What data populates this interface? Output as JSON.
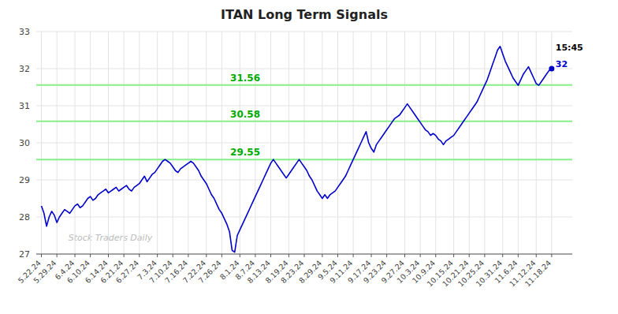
{
  "chart_data": {
    "type": "line",
    "title": "ITAN Long Term Signals",
    "color": "#0000cc",
    "grid": true,
    "marker": "endpoint",
    "ylim": [
      27,
      33
    ],
    "yticks": [
      27,
      28,
      29,
      30,
      31,
      32,
      33
    ],
    "categories": [
      "5.22.24",
      null,
      null,
      null,
      null,
      null,
      "5.29.24",
      null,
      null,
      null,
      null,
      null,
      null,
      "6.4.24",
      null,
      null,
      null,
      null,
      null,
      "6.10.24",
      null,
      null,
      null,
      null,
      null,
      null,
      "6.14.24",
      null,
      null,
      null,
      null,
      null,
      "6.21.24",
      null,
      null,
      null,
      null,
      null,
      "6.27.24",
      null,
      null,
      null,
      null,
      null,
      null,
      "7.3.24",
      null,
      null,
      null,
      null,
      null,
      "7.10.24",
      null,
      null,
      null,
      null,
      null,
      "7.16.24",
      null,
      null,
      null,
      null,
      null,
      null,
      "7.22.24",
      null,
      null,
      null,
      null,
      null,
      "7.26.24",
      null,
      null,
      null,
      null,
      null,
      null,
      "8.1.24",
      null,
      null,
      null,
      null,
      null,
      "8.7.24",
      null,
      null,
      null,
      null,
      null,
      "8.13.24",
      null,
      null,
      null,
      null,
      null,
      null,
      "8.19.24",
      null,
      null,
      null,
      null,
      null,
      "8.23.24",
      null,
      null,
      null,
      null,
      null,
      null,
      "8.29.24",
      null,
      null,
      null,
      null,
      null,
      "9.5.24",
      null,
      null,
      null,
      null,
      null,
      "9.11.24",
      null,
      null,
      null,
      null,
      null,
      null,
      "9.17.24",
      null,
      null,
      null,
      null,
      null,
      "9.23.24",
      null,
      null,
      null,
      null,
      null,
      null,
      "9.27.24",
      null,
      null,
      null,
      null,
      null,
      "10.3.24",
      null,
      null,
      null,
      null,
      null,
      "10.9.24",
      null,
      null,
      null,
      null,
      null,
      null,
      "10.15.24",
      null,
      null,
      null,
      null,
      null,
      "10.21.24",
      null,
      null,
      null,
      null,
      null,
      "10.25.24",
      null,
      null,
      null,
      null,
      null,
      null,
      "10.31.24",
      null,
      null,
      null,
      null,
      null,
      "11.6.24",
      null,
      null,
      null,
      null,
      null,
      null,
      "11.12.24",
      null,
      null,
      null,
      null,
      null,
      "11.18.24"
    ],
    "values": [
      28.3,
      28.1,
      27.75,
      28.0,
      28.15,
      28.05,
      27.85,
      28.0,
      28.1,
      28.2,
      28.15,
      28.1,
      28.2,
      28.3,
      28.35,
      28.25,
      28.3,
      28.4,
      28.5,
      28.55,
      28.45,
      28.5,
      28.6,
      28.65,
      28.7,
      28.75,
      28.65,
      28.7,
      28.75,
      28.8,
      28.7,
      28.75,
      28.8,
      28.85,
      28.75,
      28.7,
      28.8,
      28.85,
      28.9,
      29.0,
      29.1,
      28.95,
      29.05,
      29.15,
      29.2,
      29.3,
      29.4,
      29.5,
      29.55,
      29.5,
      29.45,
      29.35,
      29.25,
      29.2,
      29.3,
      29.35,
      29.4,
      29.45,
      29.5,
      29.45,
      29.35,
      29.25,
      29.1,
      29.0,
      28.9,
      28.75,
      28.6,
      28.5,
      28.35,
      28.2,
      28.1,
      27.95,
      27.8,
      27.6,
      27.1,
      27.05,
      27.5,
      27.65,
      27.8,
      27.95,
      28.1,
      28.25,
      28.4,
      28.55,
      28.7,
      28.85,
      29.0,
      29.15,
      29.3,
      29.45,
      29.55,
      29.45,
      29.35,
      29.25,
      29.15,
      29.05,
      29.15,
      29.25,
      29.35,
      29.45,
      29.55,
      29.45,
      29.35,
      29.25,
      29.1,
      29.0,
      28.85,
      28.7,
      28.6,
      28.5,
      28.6,
      28.5,
      28.6,
      28.65,
      28.7,
      28.8,
      28.9,
      29.0,
      29.1,
      29.25,
      29.4,
      29.55,
      29.7,
      29.85,
      30.0,
      30.15,
      30.3,
      30.0,
      29.85,
      29.75,
      29.95,
      30.05,
      30.15,
      30.25,
      30.35,
      30.45,
      30.55,
      30.65,
      30.7,
      30.75,
      30.85,
      30.95,
      31.05,
      30.95,
      30.85,
      30.75,
      30.65,
      30.55,
      30.45,
      30.35,
      30.3,
      30.2,
      30.25,
      30.2,
      30.1,
      30.05,
      29.95,
      30.05,
      30.1,
      30.15,
      30.2,
      30.3,
      30.4,
      30.5,
      30.6,
      30.7,
      30.8,
      30.9,
      31.0,
      31.1,
      31.25,
      31.4,
      31.55,
      31.7,
      31.9,
      32.1,
      32.3,
      32.5,
      32.6,
      32.4,
      32.2,
      32.05,
      31.9,
      31.75,
      31.65,
      31.55,
      31.7,
      31.85,
      31.95,
      32.05,
      31.9,
      31.75,
      31.6,
      31.55,
      31.65,
      31.75,
      31.85,
      31.95,
      32.0
    ],
    "hlines": [
      29.55,
      30.58,
      31.56
    ],
    "hline_labels": [
      "29.55",
      "30.58",
      "31.56"
    ],
    "hline_color": "#88ee88",
    "hline_label_color": "#00aa00",
    "annotations": [
      "15:45",
      "32"
    ],
    "annotation_colors": [
      "#000000",
      "#0000cc"
    ],
    "watermark": "Stock Traders Daily"
  }
}
